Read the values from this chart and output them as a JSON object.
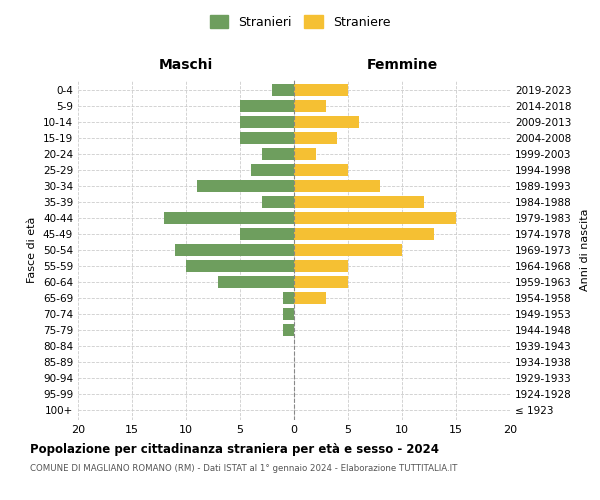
{
  "age_groups": [
    "100+",
    "95-99",
    "90-94",
    "85-89",
    "80-84",
    "75-79",
    "70-74",
    "65-69",
    "60-64",
    "55-59",
    "50-54",
    "45-49",
    "40-44",
    "35-39",
    "30-34",
    "25-29",
    "20-24",
    "15-19",
    "10-14",
    "5-9",
    "0-4"
  ],
  "birth_years": [
    "≤ 1923",
    "1924-1928",
    "1929-1933",
    "1934-1938",
    "1939-1943",
    "1944-1948",
    "1949-1953",
    "1954-1958",
    "1959-1963",
    "1964-1968",
    "1969-1973",
    "1974-1978",
    "1979-1983",
    "1984-1988",
    "1989-1993",
    "1994-1998",
    "1999-2003",
    "2004-2008",
    "2009-2013",
    "2014-2018",
    "2019-2023"
  ],
  "maschi": [
    0,
    0,
    0,
    0,
    0,
    1,
    1,
    1,
    7,
    10,
    11,
    5,
    12,
    3,
    9,
    4,
    3,
    5,
    5,
    5,
    2
  ],
  "femmine": [
    0,
    0,
    0,
    0,
    0,
    0,
    0,
    3,
    5,
    5,
    10,
    13,
    15,
    12,
    8,
    5,
    2,
    4,
    6,
    3,
    5
  ],
  "color_maschi": "#6e9e5e",
  "color_femmine": "#f5c033",
  "title": "Popolazione per cittadinanza straniera per età e sesso - 2024",
  "subtitle": "COMUNE DI MAGLIANO ROMANO (RM) - Dati ISTAT al 1° gennaio 2024 - Elaborazione TUTTITALIA.IT",
  "xlabel_left": "Maschi",
  "xlabel_right": "Femmine",
  "ylabel_left": "Fasce di età",
  "ylabel_right": "Anni di nascita",
  "xlim": 20,
  "legend_maschi": "Stranieri",
  "legend_femmine": "Straniere",
  "background_color": "#ffffff",
  "grid_color": "#cccccc"
}
